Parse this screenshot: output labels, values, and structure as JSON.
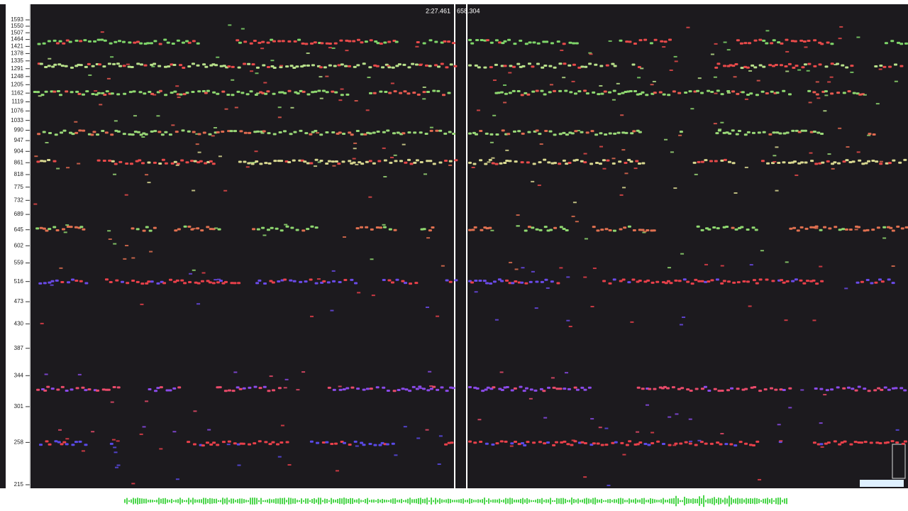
{
  "chart_data": {
    "type": "pitch-scatter",
    "log_scale": true,
    "ylim": [
      215,
      1593
    ],
    "yticks": [
      1593,
      1550,
      1507,
      1464,
      1421,
      1378,
      1335,
      1291,
      1248,
      1205,
      1162,
      1119,
      1076,
      1033,
      990,
      947,
      904,
      861,
      818,
      775,
      732,
      689,
      645,
      602,
      559,
      516,
      473,
      430,
      387,
      344,
      301,
      258,
      215
    ],
    "tracks": [
      {
        "value": 1449,
        "colors": [
          "#7fd66a",
          "#e84a4a"
        ]
      },
      {
        "value": 1307,
        "colors": [
          "#b8e08a",
          "#e84a4a"
        ]
      },
      {
        "value": 1163,
        "colors": [
          "#8fd870",
          "#e85a50"
        ]
      },
      {
        "value": 980,
        "colors": [
          "#9ad878",
          "#e06a50"
        ]
      },
      {
        "value": 864,
        "colors": [
          "#d8d890",
          "#e84a4a"
        ]
      },
      {
        "value": 648,
        "colors": [
          "#e07050",
          "#8fd870"
        ]
      },
      {
        "value": 516,
        "colors": [
          "#6a4ae8",
          "#e8404a"
        ]
      },
      {
        "value": 325,
        "colors": [
          "#e84a6a",
          "#8a4ae8"
        ]
      },
      {
        "value": 257,
        "colors": [
          "#5a4ae8",
          "#e8404a"
        ]
      }
    ],
    "cursor": {
      "time": "2:27.461",
      "reading": "658.304"
    }
  }
}
